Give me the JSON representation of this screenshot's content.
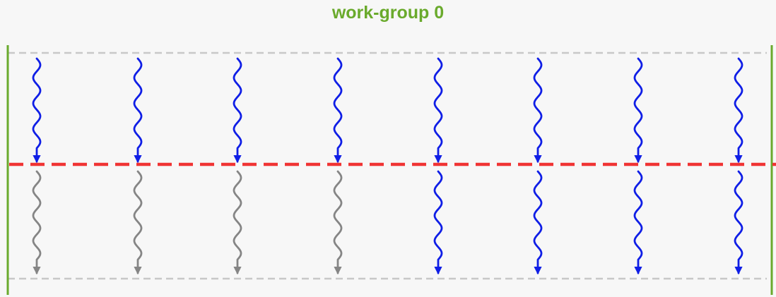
{
  "title": "work-group 0",
  "colors": {
    "title": "#6aaa2c",
    "boundary": "#6aaa2c",
    "guide": "#c8c8c8",
    "barrier": "#f03434",
    "active": "#0f1ee6",
    "idle": "#858585"
  },
  "work_items": [
    {
      "before": "active",
      "after": "idle"
    },
    {
      "before": "active",
      "after": "idle"
    },
    {
      "before": "active",
      "after": "idle"
    },
    {
      "before": "active",
      "after": "idle"
    },
    {
      "before": "active",
      "after": "active"
    },
    {
      "before": "active",
      "after": "active"
    },
    {
      "before": "active",
      "after": "active"
    },
    {
      "before": "active",
      "after": "active"
    }
  ]
}
